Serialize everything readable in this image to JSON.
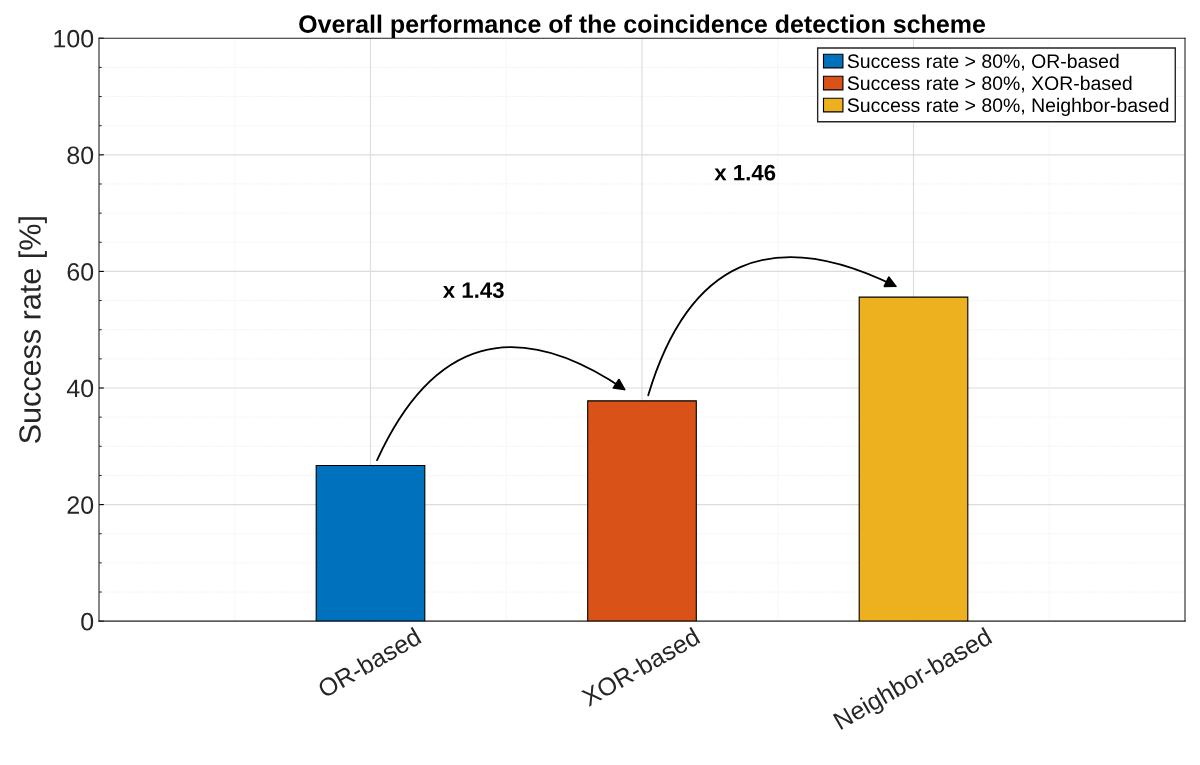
{
  "chart_data": {
    "type": "bar",
    "title": "Overall performance of the coincidence detection scheme",
    "ylabel": "Success rate [%]",
    "categories": [
      "OR-based",
      "XOR-based",
      "Neighbor-based"
    ],
    "series": [
      {
        "name": "Success rate > 80%, OR-based",
        "color": "#0072bd",
        "values": [
          26.7,
          null,
          null
        ]
      },
      {
        "name": "Success rate > 80%, XOR-based",
        "color": "#d95319",
        "values": [
          null,
          37.8,
          null
        ]
      },
      {
        "name": "Success rate > 80%, Neighbor-based",
        "color": "#edb120",
        "values": [
          null,
          null,
          55.6
        ]
      }
    ],
    "annotations": [
      "x 1.43",
      "x 1.46"
    ],
    "ylim": [
      0,
      100
    ],
    "yticks": [
      0,
      20,
      40,
      60,
      80,
      100
    ],
    "grid": true,
    "legend": "top right"
  }
}
